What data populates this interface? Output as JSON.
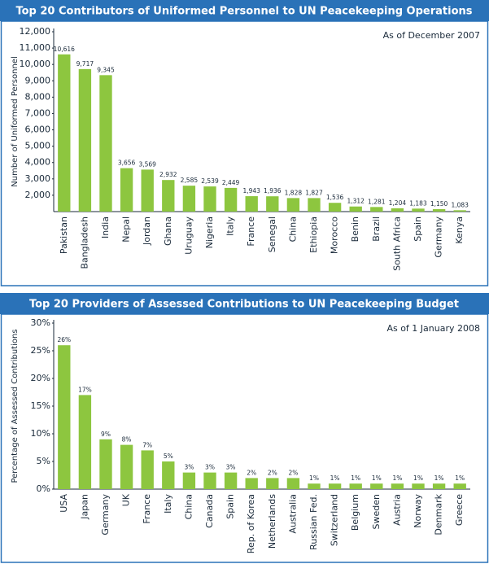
{
  "chart_data": [
    {
      "type": "bar",
      "title": "Top 20 Contributors of Uniformed Personnel to UN Peacekeeping Operations",
      "subtitle": "As of December 2007",
      "y_label": "Number of Uniformed Personnel",
      "categories": [
        "Pakistan",
        "Bangladesh",
        "India",
        "Nepal",
        "Jordan",
        "Ghana",
        "Uruguay",
        "Nigeria",
        "Italy",
        "France",
        "Senegal",
        "China",
        "Ethiopia",
        "Morocco",
        "Benin",
        "Brazil",
        "South Africa",
        "Spain",
        "Germany",
        "Kenya"
      ],
      "values": [
        10616,
        9717,
        9345,
        3656,
        3569,
        2932,
        2585,
        2539,
        2449,
        1943,
        1936,
        1828,
        1827,
        1536,
        1312,
        1281,
        1204,
        1183,
        1150,
        1083
      ],
      "value_labels": [
        "10,616",
        "9,717",
        "9,345",
        "3,656",
        "3,569",
        "2,932",
        "2,585",
        "2,539",
        "2,449",
        "1,943",
        "1,936",
        "1,828",
        "1,827",
        "1,536",
        "1,312",
        "1,281",
        "1,204",
        "1,183",
        "1,150",
        "1,083"
      ],
      "ylim": [
        1000,
        12000
      ],
      "yticks": [
        {
          "value": 2000,
          "label": "2,000"
        },
        {
          "value": 3000,
          "label": "3,000"
        },
        {
          "value": 4000,
          "label": "4,000"
        },
        {
          "value": 5000,
          "label": "5,000"
        },
        {
          "value": 6000,
          "label": "6,000"
        },
        {
          "value": 7000,
          "label": "7,000"
        },
        {
          "value": 8000,
          "label": "8,000"
        },
        {
          "value": 9000,
          "label": "9,000"
        },
        {
          "value": 10000,
          "label": "10,000"
        },
        {
          "value": 11000,
          "label": "11,000"
        },
        {
          "value": 12000,
          "label": "12,000"
        }
      ],
      "color": "#8dc63f"
    },
    {
      "type": "bar",
      "title": "Top 20 Providers of Assessed Contributions to UN Peacekeeping Budget",
      "subtitle": "As of 1 January 2008",
      "y_label": "Percentage of Assessed Contributions",
      "categories": [
        "USA",
        "Japan",
        "Germany",
        "UK",
        "France",
        "Italy",
        "China",
        "Canada",
        "Spain",
        "Rep. of Korea",
        "Netherlands",
        "Australia",
        "Russian Fed.",
        "Switzerland",
        "Belgium",
        "Sweden",
        "Austria",
        "Norway",
        "Denmark",
        "Greece"
      ],
      "values": [
        26,
        17,
        9,
        8,
        7,
        5,
        3,
        3,
        3,
        2,
        2,
        2,
        1,
        1,
        1,
        1,
        1,
        1,
        1,
        1
      ],
      "value_labels": [
        "26%",
        "17%",
        "9%",
        "8%",
        "7%",
        "5%",
        "3%",
        "3%",
        "3%",
        "2%",
        "2%",
        "2%",
        "1%",
        "1%",
        "1%",
        "1%",
        "1%",
        "1%",
        "1%",
        "1%"
      ],
      "ylim": [
        0,
        30
      ],
      "yticks": [
        {
          "value": 0,
          "label": "0%"
        },
        {
          "value": 5,
          "label": "5%"
        },
        {
          "value": 10,
          "label": "10%"
        },
        {
          "value": 15,
          "label": "15%"
        },
        {
          "value": 20,
          "label": "20%"
        },
        {
          "value": 25,
          "label": "25%"
        },
        {
          "value": 30,
          "label": "30%"
        }
      ],
      "color": "#8dc63f"
    }
  ]
}
